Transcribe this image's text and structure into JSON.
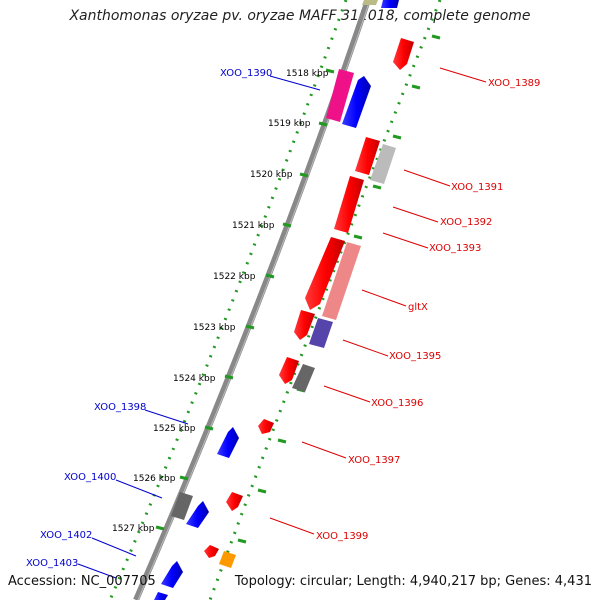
{
  "title": "Xanthomonas oryzae pv. oryzae MAFF 311018, complete genome",
  "accession": "Accession: NC_007705",
  "summary": "Topology: circular; Length: 4,940,217 bp; Genes: 4,431",
  "colors": {
    "backbone": "#888888",
    "forward_label": "#0000cc",
    "reverse_label": "#dd0000",
    "dot_ring": "#229922",
    "forward_gene": "#0000ff",
    "reverse_gene": "#ff0000"
  },
  "ticks": [
    {
      "label": "1518 kbp"
    },
    {
      "label": "1519 kbp"
    },
    {
      "label": "1520 kbp"
    },
    {
      "label": "1521 kbp"
    },
    {
      "label": "1522 kbp"
    },
    {
      "label": "1523 kbp"
    },
    {
      "label": "1524 kbp"
    },
    {
      "label": "1525 kbp"
    },
    {
      "label": "1526 kbp"
    },
    {
      "label": "1527 kbp"
    }
  ],
  "forward_labels": [
    {
      "label": "XOO_1390"
    },
    {
      "label": "XOO_1398"
    },
    {
      "label": "XOO_1400"
    },
    {
      "label": "XOO_1402"
    },
    {
      "label": "XOO_1403"
    }
  ],
  "reverse_labels": [
    {
      "label": "XOO_1389"
    },
    {
      "label": "XOO_1391"
    },
    {
      "label": "XOO_1392"
    },
    {
      "label": "XOO_1393"
    },
    {
      "label": "gltX"
    },
    {
      "label": "XOO_1395"
    },
    {
      "label": "XOO_1396"
    },
    {
      "label": "XOO_1397"
    },
    {
      "label": "XOO_1399"
    }
  ]
}
